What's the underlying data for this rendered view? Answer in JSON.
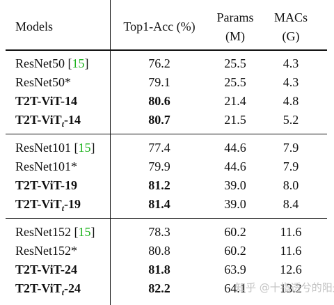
{
  "headers": {
    "models": "Models",
    "top1": "Top1-Acc (%)",
    "params_line1": "Params",
    "params_line2": "(M)",
    "macs_line1": "MACs",
    "macs_line2": "(G)"
  },
  "rows": [
    {
      "name": "ResNet50",
      "ref": "15",
      "acc": "76.2",
      "params": "25.5",
      "macs": "4.3"
    },
    {
      "name": "ResNet50*",
      "acc": "79.1",
      "params": "25.5",
      "macs": "4.3"
    },
    {
      "name": "T2T-ViT-14",
      "acc": "80.6",
      "params": "21.4",
      "macs": "4.8"
    },
    {
      "name_pre": "T2T-ViT",
      "name_sub": "t",
      "name_post": "-14",
      "acc": "80.7",
      "params": "21.5",
      "macs": "5.2"
    },
    {
      "name": "ResNet101",
      "ref": "15",
      "acc": "77.4",
      "params": "44.6",
      "macs": "7.9"
    },
    {
      "name": "ResNet101*",
      "acc": "79.9",
      "params": "44.6",
      "macs": "7.9"
    },
    {
      "name": "T2T-ViT-19",
      "acc": "81.2",
      "params": "39.0",
      "macs": "8.0"
    },
    {
      "name_pre": "T2T-ViT",
      "name_sub": "t",
      "name_post": "-19",
      "acc": "81.4",
      "params": "39.0",
      "macs": "8.4"
    },
    {
      "name": "ResNet152",
      "ref": "15",
      "acc": "78.3",
      "params": "60.2",
      "macs": "11.6"
    },
    {
      "name": "ResNet152*",
      "acc": "80.8",
      "params": "60.2",
      "macs": "11.6"
    },
    {
      "name": "T2T-ViT-24",
      "acc": "81.8",
      "params": "63.9",
      "macs": "12.6"
    },
    {
      "name_pre": "T2T-ViT",
      "name_sub": "t",
      "name_post": "-24",
      "acc": "82.2",
      "params": "64.1",
      "macs": "13.2"
    }
  ],
  "watermark": "知乎 @十指透兮的阳光"
}
